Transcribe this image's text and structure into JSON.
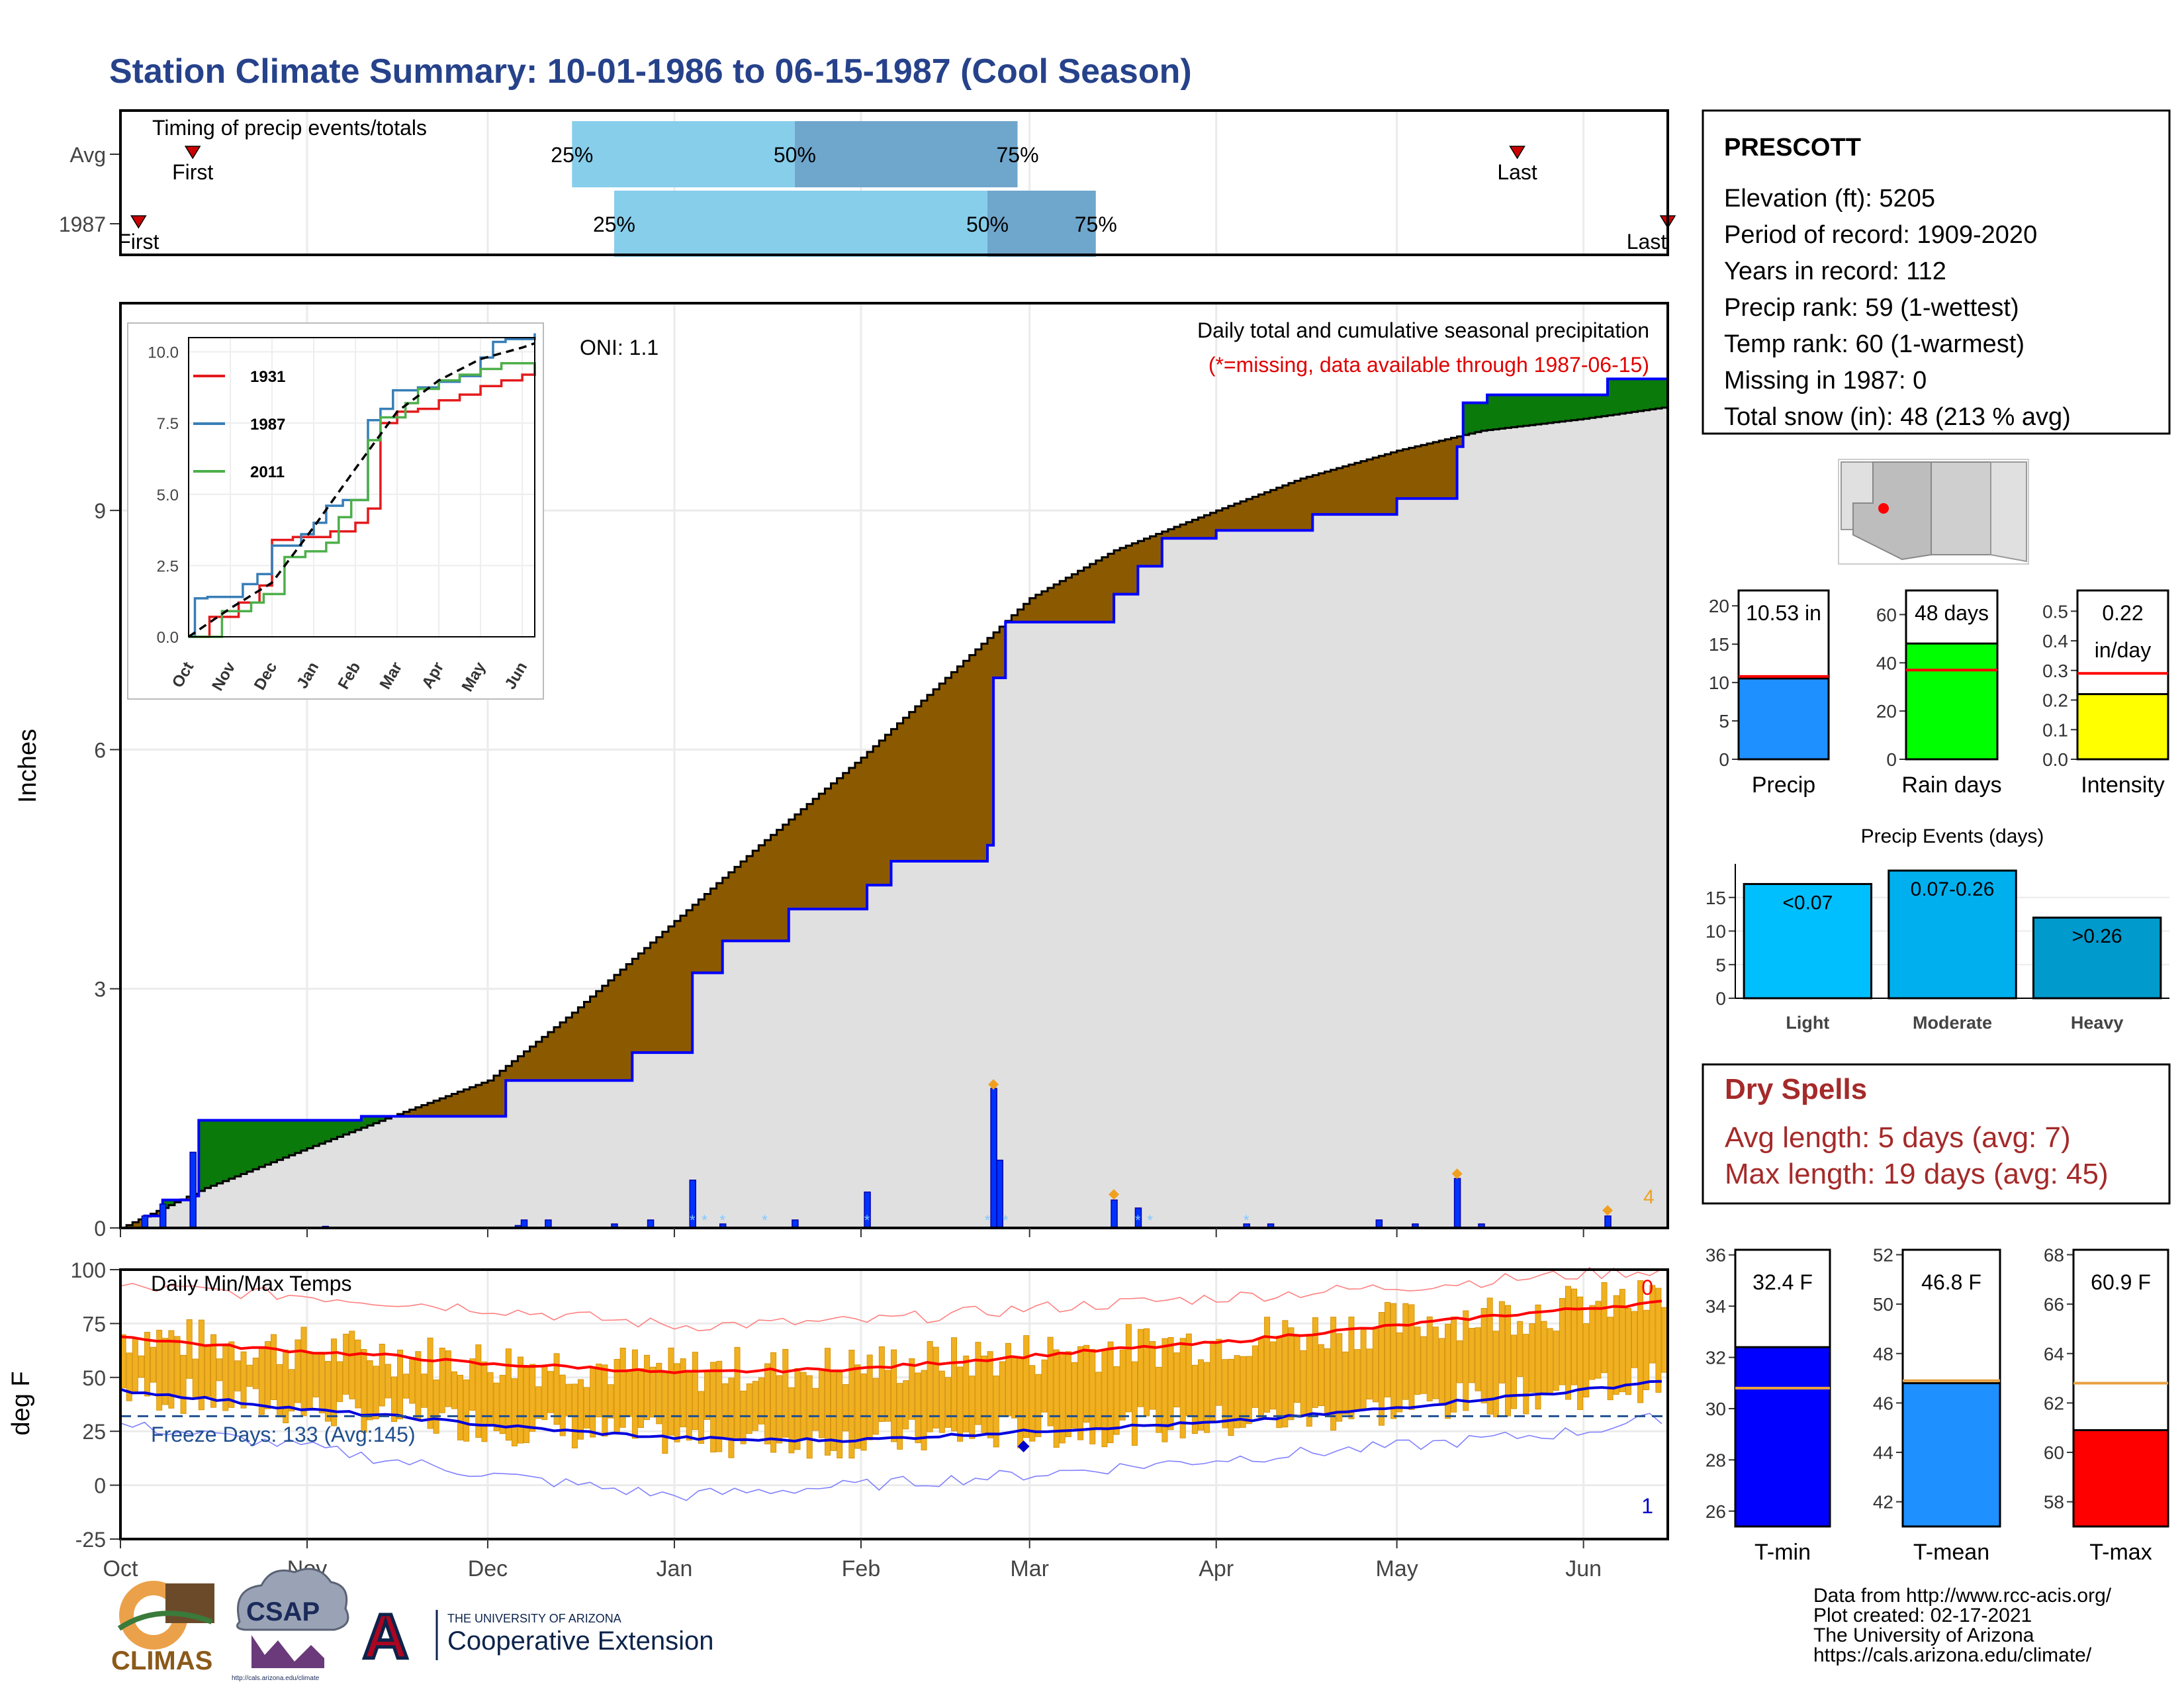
{
  "page": {
    "title": "Station Climate Summary: 10-01-1986 to 06-15-1987 (Cool Season)",
    "title_color": "#26428b"
  },
  "colors": {
    "wetter": "#0a7a0a",
    "drier": "#8b5a00",
    "cumulative_fill": "#e0e0e0",
    "observed_line": "#0000ff",
    "temp_bar": "#f0b020",
    "avg_max": "#ff0000",
    "avg_min": "#0000dd",
    "record_max": "#ff8080",
    "record_min": "#8080ff",
    "tercile_light": "#87ceeb",
    "tercile_dark": "#6fa6cc",
    "marker": "#cc0000",
    "dry_spell": "#a52a2a"
  },
  "labels": {
    "x_months": [
      "Oct",
      "Nov",
      "Dec",
      "Jan",
      "Feb",
      "Mar",
      "Apr",
      "May",
      "Jun"
    ],
    "inset_months": [
      "Oct",
      "Nov",
      "Dec",
      "Jan",
      "Feb",
      "Mar",
      "Apr",
      "May",
      "Jun"
    ]
  },
  "station": {
    "name": "PRESCOTT",
    "lines": [
      "Elevation (ft): 5205",
      "Period of record: 1909-2020",
      "Years in record: 112",
      "Precip rank: 59 (1-wettest)",
      "Temp rank: 60 (1-warmest)",
      "Missing in 1987: 0",
      "Total snow (in): 48 (213 % avg)"
    ]
  },
  "dry_spells": {
    "title": "Dry Spells",
    "avg": "Avg length: 5 days (avg: 7)",
    "max": "Max length: 19 days (avg: 45)"
  },
  "footer": {
    "lines": [
      "Data from http://www.rcc-acis.org/",
      "Plot created: 02-17-2021",
      "The University of Arizona",
      "https://cals.arizona.edu/climate/"
    ],
    "logos": {
      "climas": "CLIMAS",
      "csap": "CSAP",
      "csap_url": "http://cals.arizona.edu/climate",
      "ua_top": "THE UNIVERSITY OF ARIZONA",
      "ua_bottom": "Cooperative Extension",
      "ua_letter": "A"
    }
  },
  "chart_data": [
    {
      "id": "timing",
      "type": "bar",
      "title": "Timing of precip events/totals",
      "categories": [
        "Avg",
        "1987"
      ],
      "rows": [
        {
          "name": "Avg",
          "first": "10-13",
          "p25": "12-15",
          "p50": "01-21",
          "p75": "02-27",
          "last": "05-21"
        },
        {
          "name": "1987",
          "first": "10-04",
          "p25": "12-22",
          "p50": "02-22",
          "p75": "03-12",
          "last": "06-15"
        }
      ],
      "labels": {
        "first": "First",
        "last": "Last",
        "p25": "25%",
        "p50": "50%",
        "p75": "75%"
      }
    },
    {
      "id": "precip",
      "type": "area",
      "title": "Daily total and cumulative seasonal precipitation",
      "note": "(*=missing, data available through 1987-06-15)",
      "oni": "ONI: 1.1",
      "ylabel": "Inches",
      "ylim": [
        0,
        11.6
      ],
      "yticks": [
        0,
        3,
        6,
        9
      ],
      "xlim": [
        "1986-10-01",
        "1987-06-15"
      ],
      "avg_cumulative": {
        "x": [
          "10-01",
          "10-15",
          "11-01",
          "11-15",
          "12-01",
          "12-15",
          "01-01",
          "01-15",
          "02-01",
          "02-15",
          "03-01",
          "03-15",
          "04-01",
          "04-15",
          "05-01",
          "05-15",
          "06-01",
          "06-15"
        ],
        "y": [
          0.0,
          0.5,
          1.0,
          1.4,
          1.85,
          2.7,
          3.85,
          4.8,
          5.9,
          6.9,
          7.9,
          8.5,
          9.0,
          9.4,
          9.75,
          10.0,
          10.15,
          10.3
        ]
      },
      "observed_cumulative": {
        "x": [
          "10-01",
          "10-05",
          "10-08",
          "10-13",
          "10-14",
          "11-01",
          "11-10",
          "12-04",
          "12-20",
          "12-25",
          "01-01",
          "01-04",
          "01-09",
          "01-20",
          "02-02",
          "02-06",
          "02-22",
          "02-23",
          "02-25",
          "02-28",
          "03-15",
          "03-19",
          "03-23",
          "04-01",
          "04-17",
          "05-01",
          "05-11",
          "05-12",
          "05-16",
          "06-05",
          "06-15"
        ],
        "y": [
          0.0,
          0.15,
          0.35,
          0.4,
          1.35,
          1.35,
          1.4,
          1.85,
          1.85,
          2.2,
          2.2,
          3.2,
          3.6,
          4.0,
          4.3,
          4.6,
          4.8,
          6.9,
          7.6,
          7.6,
          7.95,
          8.3,
          8.65,
          8.75,
          8.95,
          9.15,
          9.8,
          10.35,
          10.45,
          10.65,
          10.65
        ]
      },
      "daily_precip": {
        "x": [
          "10-05",
          "10-08",
          "10-13",
          "11-04",
          "12-06",
          "12-07",
          "12-11",
          "12-22",
          "12-28",
          "01-04",
          "01-09",
          "01-21",
          "02-02",
          "02-23",
          "02-24",
          "03-15",
          "03-19",
          "04-06",
          "04-10",
          "04-28",
          "05-04",
          "05-11",
          "05-15",
          "06-05"
        ],
        "y": [
          0.15,
          0.3,
          0.95,
          0.02,
          0.03,
          0.1,
          0.1,
          0.05,
          0.1,
          0.6,
          0.05,
          0.1,
          0.45,
          1.75,
          0.85,
          0.35,
          0.25,
          0.05,
          0.05,
          0.1,
          0.05,
          0.62,
          0.05,
          0.15
        ]
      },
      "snow_flags": [
        "01-04",
        "01-06",
        "01-09",
        "01-16",
        "02-02",
        "02-22",
        "02-25",
        "03-19",
        "03-21",
        "04-06"
      ],
      "annotations": [
        {
          "x": "02-23",
          "y": 1.8
        },
        {
          "x": "03-15",
          "y": 0.42
        },
        {
          "x": "05-11",
          "y": 0.68
        },
        {
          "x": "06-05",
          "y": 0.22
        }
      ],
      "count_label": "4"
    },
    {
      "id": "inset",
      "type": "line",
      "ylim": [
        0,
        10.5
      ],
      "yticks": [
        "0.0",
        "2.5",
        "5.0",
        "7.5",
        "10.0"
      ],
      "legend": [
        "1931",
        "1987",
        "2011"
      ],
      "series": [
        {
          "name": "1931",
          "color": "#e41a1c",
          "x": [
            0,
            0.5,
            1.2,
            1.7,
            2.0,
            2.5,
            3.0,
            3.4,
            4.0,
            4.3,
            4.6,
            5.0,
            5.5,
            6.0,
            6.5,
            7.0,
            7.5,
            8.0,
            8.3
          ],
          "y": [
            0,
            0.7,
            1.2,
            1.8,
            3.4,
            3.5,
            3.5,
            3.7,
            4.0,
            4.5,
            7.5,
            7.9,
            8.0,
            8.3,
            8.5,
            8.8,
            9.0,
            9.2,
            9.6
          ]
        },
        {
          "name": "1987",
          "color": "#377eb8",
          "x": [
            0,
            0.15,
            0.45,
            1.3,
            1.65,
            2.0,
            2.7,
            3.0,
            3.3,
            3.7,
            4.3,
            4.6,
            4.9,
            5.5,
            6.0,
            6.5,
            7.0,
            7.3,
            7.6,
            8.3
          ],
          "y": [
            0,
            1.35,
            1.4,
            1.85,
            2.2,
            3.2,
            3.6,
            4.0,
            4.6,
            4.8,
            7.6,
            8.0,
            8.65,
            8.75,
            8.95,
            9.15,
            9.8,
            10.35,
            10.45,
            10.65
          ]
        },
        {
          "name": "2011",
          "color": "#4daf4a",
          "x": [
            0,
            0.8,
            1.5,
            1.8,
            2.3,
            2.8,
            3.3,
            3.6,
            3.9,
            4.3,
            4.6,
            5.2,
            5.5,
            6.0,
            6.5,
            7.0,
            7.5,
            8.3
          ],
          "y": [
            0,
            0.9,
            1.2,
            1.5,
            2.8,
            3.0,
            3.3,
            4.2,
            4.8,
            6.9,
            7.7,
            8.2,
            8.7,
            9.0,
            9.2,
            9.4,
            9.6,
            9.3
          ]
        },
        {
          "name": "avg",
          "color": "#000000",
          "dashed": true,
          "x": [
            0,
            1,
            2,
            3,
            4,
            5,
            6,
            7,
            8,
            8.3
          ],
          "y": [
            0,
            1.0,
            1.9,
            3.85,
            5.9,
            7.9,
            9.0,
            9.75,
            10.15,
            10.3
          ]
        }
      ]
    },
    {
      "id": "temps",
      "type": "bar",
      "title": "Daily Min/Max Temps",
      "ylabel": "deg F",
      "ylim": [
        -25,
        100
      ],
      "yticks": [
        -25,
        0,
        25,
        50,
        75,
        100
      ],
      "freeze_text": "Freeze Days: 133 (Avg:145)",
      "freeze_line": 32,
      "top_count": "0",
      "bottom_count": "1",
      "avg_max": {
        "x": [
          0,
          15,
          31,
          45,
          61,
          75,
          92,
          105,
          123,
          137,
          151,
          165,
          182,
          196,
          212,
          226,
          243,
          257
        ],
        "y": [
          69,
          65,
          62,
          60,
          56,
          55,
          52,
          53,
          54,
          57,
          60,
          63,
          66,
          70,
          74,
          78,
          82,
          85
        ]
      },
      "avg_min": {
        "x": [
          0,
          15,
          31,
          45,
          61,
          75,
          92,
          105,
          123,
          137,
          151,
          165,
          182,
          196,
          212,
          226,
          243,
          257
        ],
        "y": [
          44,
          40,
          35,
          32,
          28,
          25,
          22,
          21,
          21,
          23,
          25,
          27,
          29,
          32,
          36,
          40,
          44,
          49
        ]
      },
      "record_max": {
        "x": [
          0,
          30,
          61,
          92,
          123,
          151,
          182,
          212,
          243,
          257
        ],
        "y": [
          92,
          88,
          82,
          74,
          76,
          82,
          87,
          92,
          98,
          100
        ]
      },
      "record_min": {
        "x": [
          0,
          30,
          61,
          92,
          123,
          151,
          182,
          212,
          243,
          257
        ],
        "y": [
          28,
          18,
          5,
          -5,
          0,
          5,
          12,
          18,
          25,
          32
        ]
      }
    },
    {
      "id": "summary_bars",
      "type": "bar",
      "panels": [
        {
          "name": "Precip",
          "value": 10.53,
          "avg": 10.8,
          "ylim": [
            0,
            22
          ],
          "yticks": [
            0,
            5,
            10,
            15,
            20
          ],
          "label": "10.53 in",
          "color": "#1e90ff"
        },
        {
          "name": "Rain days",
          "value": 48,
          "avg": 37,
          "ylim": [
            0,
            70
          ],
          "yticks": [
            0,
            20,
            40,
            60
          ],
          "label": "48 days",
          "color": "#00ff00"
        },
        {
          "name": "Intensity",
          "value": 0.22,
          "avg": 0.29,
          "ylim": [
            0,
            0.57
          ],
          "yticks": [
            "0.0",
            "0.1",
            "0.2",
            "0.3",
            "0.4",
            "0.5"
          ],
          "label": "0.22",
          "label2": "in/day",
          "color": "#ffff00"
        }
      ]
    },
    {
      "id": "precip_events",
      "type": "bar",
      "title": "Precip Events (days)",
      "categories": [
        "Light",
        "Moderate",
        "Heavy"
      ],
      "values": [
        17,
        19,
        12
      ],
      "bar_labels": [
        "<0.07",
        "0.07-0.26",
        ">0.26"
      ],
      "ylim": [
        0,
        20
      ],
      "yticks": [
        0,
        5,
        10,
        15
      ],
      "colors": [
        "#00bfff",
        "#00b0ee",
        "#009acd"
      ]
    },
    {
      "id": "temp_bars",
      "type": "bar",
      "panels": [
        {
          "name": "T-min",
          "value": 32.4,
          "avg": 30.8,
          "ylim": [
            25.4,
            36.2
          ],
          "yticks": [
            26,
            28,
            30,
            32,
            34,
            36
          ],
          "label": "32.4 F",
          "color": "#0000ff"
        },
        {
          "name": "T-mean",
          "value": 46.8,
          "avg": 46.9,
          "ylim": [
            41.0,
            52.2
          ],
          "yticks": [
            42,
            44,
            46,
            48,
            50,
            52
          ],
          "label": "46.8 F",
          "color": "#1e90ff"
        },
        {
          "name": "T-max",
          "value": 60.9,
          "avg": 62.8,
          "ylim": [
            57.0,
            68.2
          ],
          "yticks": [
            58,
            60,
            62,
            64,
            66,
            68
          ],
          "label": "60.9 F",
          "color": "#ff0000"
        }
      ]
    }
  ]
}
